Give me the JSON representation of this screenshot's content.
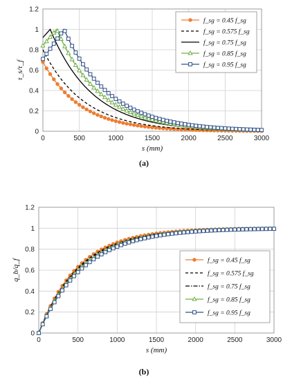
{
  "chart_data": [
    {
      "type": "line",
      "caption": "(a)",
      "xlabel": "s (mm)",
      "ylabel": "τ_s/τ_f",
      "xlim": [
        0,
        3000
      ],
      "ylim": [
        0,
        1.2
      ],
      "xticks": [
        0,
        500,
        1000,
        1500,
        2000,
        2500,
        3000
      ],
      "yticks": [
        0,
        0.2,
        0.4,
        0.6,
        0.8,
        1,
        1.2
      ],
      "ytick_labels": [
        "0",
        "0.2",
        "0.4",
        "0.6",
        "0.8",
        "1",
        "1.2"
      ],
      "grid": "both",
      "legend_position": "top-right",
      "colors": {
        "0.45": "#ED7D31",
        "0.575": "#000000",
        "0.75": "#000000",
        "0.85": "#70AD47",
        "0.95": "#2F4F86"
      },
      "series": [
        {
          "legend": "f_sg = 0.45 f_sg",
          "coef": "0.45",
          "peak_x": 0,
          "peak_y": 0.68,
          "decay": 520,
          "rise_start_y": 0.68
        },
        {
          "legend": "f_sg = 0.575 f_sg",
          "coef": "0.575",
          "peak_x": 0,
          "peak_y": 0.8,
          "decay": 560,
          "rise_start_y": 0.8
        },
        {
          "legend": "f_sg = 0.75 f_sg",
          "coef": "0.75",
          "peak_x": 100,
          "peak_y": 1.0,
          "decay": 580,
          "rise_start_y": 0.92
        },
        {
          "legend": "f_sg = 0.85 f_sg",
          "coef": "0.85",
          "peak_x": 190,
          "peak_y": 1.0,
          "decay": 600,
          "rise_start_y": 0.84
        },
        {
          "legend": "f_sg = 0.95 f_sg",
          "coef": "0.95",
          "peak_x": 290,
          "peak_y": 1.0,
          "decay": 620,
          "rise_start_y": 0.71
        }
      ]
    },
    {
      "type": "line",
      "caption": "(b)",
      "xlabel": "s (mm)",
      "ylabel": "q_b/q_f",
      "xlim": [
        0,
        3000
      ],
      "ylim": [
        0,
        1.2
      ],
      "xticks": [
        0,
        500,
        1000,
        1500,
        2000,
        2500,
        3000
      ],
      "yticks": [
        0,
        0.2,
        0.4,
        0.6,
        0.8,
        1,
        1.2
      ],
      "ytick_labels": [
        "0",
        "0.2",
        "0.4",
        "0.6",
        "0.8",
        "1",
        "1.2"
      ],
      "grid": "both",
      "legend_position": "right-middle",
      "series": [
        {
          "legend": "f_sg = 0.45 f_sg",
          "coef": "0.45",
          "decay": 500
        },
        {
          "legend": "f_sg = 0.575 f_sg",
          "coef": "0.575",
          "decay": 515
        },
        {
          "legend": "f_sg = 0.75 f_sg",
          "coef": "0.75",
          "decay": 530
        },
        {
          "legend": "f_sg = 0.85 f_sg",
          "coef": "0.85",
          "decay": 550
        },
        {
          "legend": "f_sg = 0.95 f_sg",
          "coef": "0.95",
          "decay": 575
        }
      ]
    }
  ]
}
